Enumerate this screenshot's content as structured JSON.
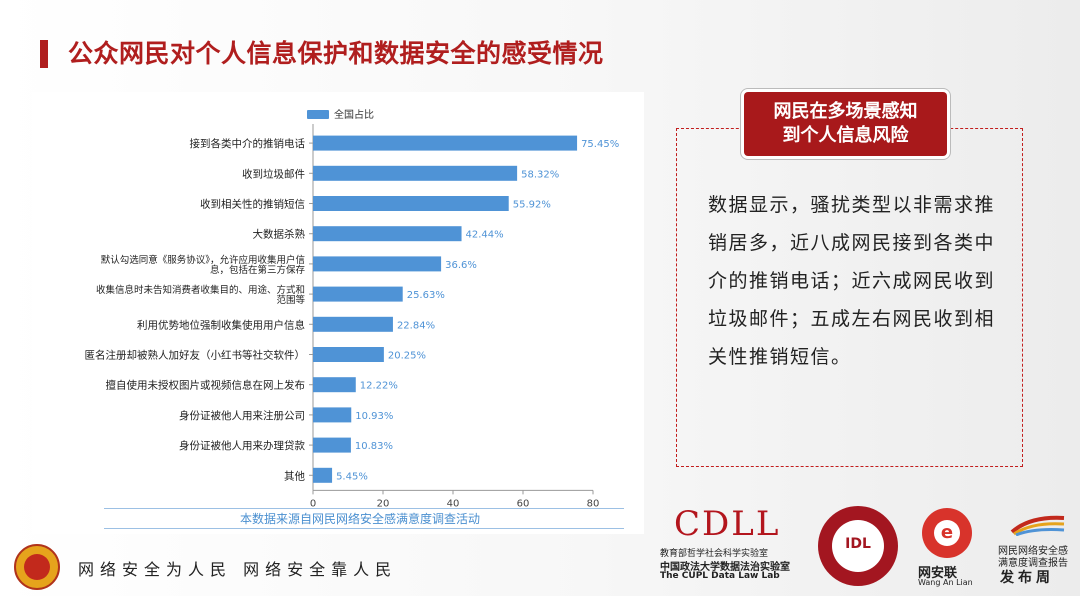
{
  "page": {
    "title": "公众网民对个人信息保护和数据安全的感受情况",
    "source_note": "本数据来源自网民网络安全感满意度调查活动",
    "panel_tag": "网民在多场景感知\n到个人信息风险",
    "panel_text": "数据显示，骚扰类型以非需求推销居多，近八成网民接到各类中介的推销电话；近六成网民收到垃圾邮件；五成左右网民收到相关性推销短信。",
    "footer_slogan": "网络安全为人民  网络安全靠人民",
    "logo_cdll": "CDLL",
    "logo_cdll_sub1": "教育部哲学社会科学实验室",
    "logo_cdll_sub2": "中国政法大学数据法治实验室",
    "logo_cdll_sub3": "The CUPL Data Law Lab",
    "seal_text": "IDL",
    "wal_name": "网安联",
    "wal_en": "Wang An Lian",
    "report_l1": "网民网络安全感",
    "report_l2": "满意度调查报告",
    "report_l3": "发布周"
  },
  "colors": {
    "accent": "#b01e1e",
    "bar": "#4f93d6",
    "label_value": "#4f93d6"
  },
  "chart_data": {
    "type": "bar",
    "orientation": "horizontal",
    "legend": "全国占比",
    "legend_position": "top-left",
    "categories": [
      "接到各类中介的推销电话",
      "收到垃圾邮件",
      "收到相关性的推销短信",
      "大数据杀熟",
      "默认勾选同意《服务协议》，允许应用收集用户信息，包括在第三方保存",
      "收集信息时未告知消费者收集目的、用途、方式和范围等",
      "利用优势地位强制收集使用用户信息",
      "匿名注册却被熟人加好友（小红书等社交软件）",
      "擅自使用未授权图片或视频信息在网上发布",
      "身份证被他人用来注册公司",
      "身份证被他人用来办理贷款",
      "其他"
    ],
    "values": [
      75.45,
      58.32,
      55.92,
      42.44,
      36.6,
      25.63,
      22.84,
      20.25,
      12.22,
      10.93,
      10.83,
      5.45
    ],
    "value_labels": [
      "75.45%",
      "58.32%",
      "55.92%",
      "42.44%",
      "36.6%",
      "25.63%",
      "22.84%",
      "20.25%",
      "12.22%",
      "10.93%",
      "10.83%",
      "5.45%"
    ],
    "x_ticks": [
      0,
      20,
      40,
      60,
      80
    ],
    "xlim": [
      0,
      80
    ],
    "grid": false
  }
}
